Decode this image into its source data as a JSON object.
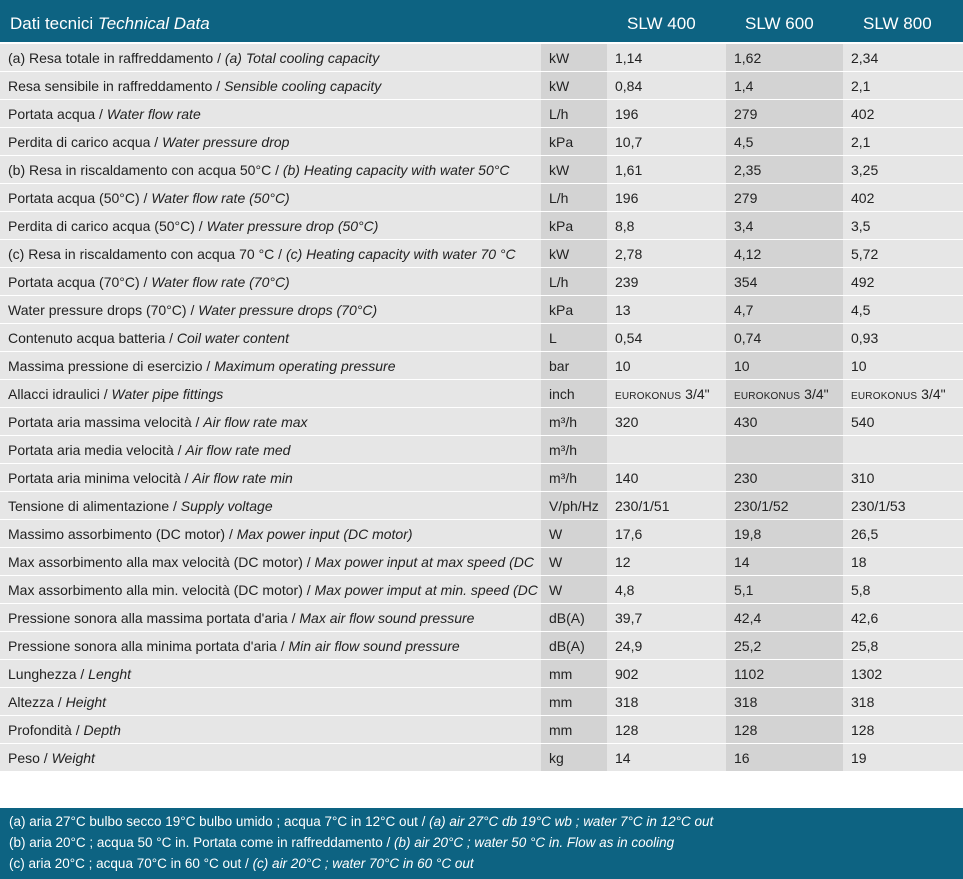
{
  "header": {
    "title_it": "Dati tecnici",
    "title_en": "Technical Data",
    "models": [
      "SLW 400",
      "SLW 600",
      "SLW 800"
    ]
  },
  "rows": [
    {
      "it": "(a) Resa totale in raffreddamento / ",
      "en": "(a) Total cooling capacity",
      "unit": "kW",
      "v": [
        "1,14",
        "1,62",
        "2,34"
      ]
    },
    {
      "it": "Resa sensibile in raffreddamento / ",
      "en": "Sensible cooling capacity",
      "unit": "kW",
      "v": [
        "0,84",
        "1,4",
        "2,1"
      ]
    },
    {
      "it": "Portata acqua / ",
      "en": "Water flow rate",
      "unit": "L/h",
      "v": [
        "196",
        "279",
        "402"
      ]
    },
    {
      "it": "Perdita di carico acqua / ",
      "en": "Water pressure drop",
      "unit": "kPa",
      "v": [
        "10,7",
        "4,5",
        "2,1"
      ]
    },
    {
      "it": "(b) Resa in riscaldamento con acqua 50°C / ",
      "en": "(b) Heating capacity with water 50°C",
      "unit": "kW",
      "v": [
        "1,61",
        "2,35",
        "3,25"
      ]
    },
    {
      "it": "Portata acqua (50°C) / ",
      "en": "Water flow rate (50°C)",
      "unit": "L/h",
      "v": [
        "196",
        "279",
        "402"
      ]
    },
    {
      "it": "Perdita di carico acqua (50°C) / ",
      "en": "Water pressure drop (50°C)",
      "unit": "kPa",
      "v": [
        "8,8",
        "3,4",
        "3,5"
      ]
    },
    {
      "it": "(c) Resa in riscaldamento con acqua 70 °C / ",
      "en": "(c) Heating capacity with water 70 °C",
      "unit": "kW",
      "v": [
        "2,78",
        "4,12",
        "5,72"
      ]
    },
    {
      "it": "Portata acqua (70°C) / ",
      "en": "Water flow rate (70°C)",
      "unit": "L/h",
      "v": [
        "239",
        "354",
        "492"
      ]
    },
    {
      "it": "Water pressure drops (70°C) / ",
      "en": "Water pressure drops (70°C)",
      "unit": "kPa",
      "v": [
        "13",
        "4,7",
        "4,5"
      ]
    },
    {
      "it": "Contenuto acqua batteria / ",
      "en": "Coil water content",
      "unit": "L",
      "v": [
        "0,54",
        "0,74",
        "0,93"
      ]
    },
    {
      "it": "Massima pressione di esercizio / ",
      "en": "Maximum operating pressure",
      "unit": "bar",
      "v": [
        "10",
        "10",
        "10"
      ]
    },
    {
      "it": "Allacci idraulici / ",
      "en": "Water pipe fittings",
      "unit": "inch",
      "v": [
        "EUROKONUS",
        "EUROKONUS",
        "EUROKONUS"
      ],
      "v2": [
        "3/4\"",
        "3/4\"",
        "3/4\""
      ]
    },
    {
      "it": "Portata aria massima velocità / ",
      "en": "Air flow rate max",
      "unit": "m³/h",
      "v": [
        "320",
        "430",
        "540"
      ]
    },
    {
      "it": "Portata aria media velocità / ",
      "en": "Air flow rate med",
      "unit": "m³/h",
      "v": [
        "",
        "",
        ""
      ]
    },
    {
      "it": "Portata aria minima velocità / ",
      "en": "Air flow rate min",
      "unit": "m³/h",
      "v": [
        "140",
        "230",
        "310"
      ]
    },
    {
      "it": "Tensione di alimentazione / ",
      "en": "Supply voltage",
      "unit": "V/ph/Hz",
      "v": [
        "230/1/51",
        "230/1/52",
        "230/1/53"
      ]
    },
    {
      "it": "Massimo assorbimento (DC motor) / ",
      "en": "Max power input (DC motor)",
      "unit": "W",
      "v": [
        "17,6",
        "19,8",
        "26,5"
      ]
    },
    {
      "it": "Max assorbimento alla max velocità (DC motor) / ",
      "en": "Max power input at max speed (DC motor)",
      "unit": "W",
      "v": [
        "12",
        "14",
        "18"
      ]
    },
    {
      "it": "Max assorbimento alla min. velocità (DC motor) / ",
      "en": "Max power imput at min. speed (DC motor)",
      "unit": "W",
      "v": [
        "4,8",
        "5,1",
        "5,8"
      ]
    },
    {
      "it": "Pressione sonora alla massima portata d'aria / ",
      "en": "Max air flow sound pressure",
      "unit": "dB(A)",
      "v": [
        "39,7",
        "42,4",
        "42,6"
      ]
    },
    {
      "it": "Pressione sonora alla minima portata d'aria / ",
      "en": "Min air flow sound pressure",
      "unit": "dB(A)",
      "v": [
        "24,9",
        "25,2",
        "25,8"
      ]
    },
    {
      "it": "Lunghezza / ",
      "en": "Lenght",
      "unit": "mm",
      "v": [
        "902",
        "1102",
        "1302"
      ]
    },
    {
      "it": "Altezza / ",
      "en": "Height",
      "unit": "mm",
      "v": [
        "318",
        "318",
        "318"
      ]
    },
    {
      "it": "Profondità / ",
      "en": "Depth",
      "unit": "mm",
      "v": [
        "128",
        "128",
        "128"
      ]
    },
    {
      "it": "Peso / ",
      "en": "Weight",
      "unit": "kg",
      "v": [
        "14",
        "16",
        "19"
      ]
    }
  ],
  "footer": [
    {
      "it": "(a) aria 27°C bulbo secco 19°C bulbo umido ; acqua 7°C in 12°C out / ",
      "en": "(a) air 27°C db 19°C wb ; water 7°C in 12°C out"
    },
    {
      "it": "(b) aria 20°C ; acqua 50 °C in. Portata come in raffreddamento / ",
      "en": "(b) air 20°C ; water 50 °C in. Flow as in cooling"
    },
    {
      "it": "(c) aria 20°C ; acqua 70°C in 60 °C out / ",
      "en": "(c) air 20°C ; water 70°C in 60 °C out"
    }
  ]
}
